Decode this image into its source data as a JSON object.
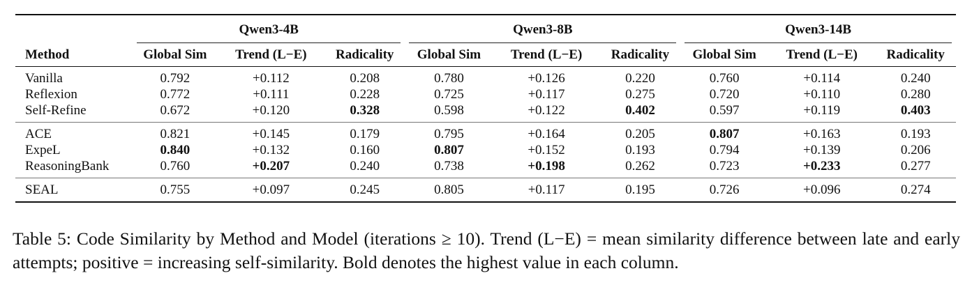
{
  "table": {
    "method_header": "Method",
    "models": [
      "Qwen3-4B",
      "Qwen3-8B",
      "Qwen3-14B"
    ],
    "metrics": [
      "Global Sim",
      "Trend (L−E)",
      "Radicality"
    ],
    "groups": [
      [
        {
          "method": "Vanilla",
          "values": [
            "0.792",
            "+0.112",
            "0.208",
            "0.780",
            "+0.126",
            "0.220",
            "0.760",
            "+0.114",
            "0.240"
          ],
          "bold": []
        },
        {
          "method": "Reflexion",
          "values": [
            "0.772",
            "+0.111",
            "0.228",
            "0.725",
            "+0.117",
            "0.275",
            "0.720",
            "+0.110",
            "0.280"
          ],
          "bold": []
        },
        {
          "method": "Self-Refine",
          "values": [
            "0.672",
            "+0.120",
            "0.328",
            "0.598",
            "+0.122",
            "0.402",
            "0.597",
            "+0.119",
            "0.403"
          ],
          "bold": [
            2,
            5,
            8
          ]
        }
      ],
      [
        {
          "method": "ACE",
          "values": [
            "0.821",
            "+0.145",
            "0.179",
            "0.795",
            "+0.164",
            "0.205",
            "0.807",
            "+0.163",
            "0.193"
          ],
          "bold": [
            6
          ]
        },
        {
          "method": "ExpeL",
          "values": [
            "0.840",
            "+0.132",
            "0.160",
            "0.807",
            "+0.152",
            "0.193",
            "0.794",
            "+0.139",
            "0.206"
          ],
          "bold": [
            0,
            3
          ]
        },
        {
          "method": "ReasoningBank",
          "values": [
            "0.760",
            "+0.207",
            "0.240",
            "0.738",
            "+0.198",
            "0.262",
            "0.723",
            "+0.233",
            "0.277"
          ],
          "bold": [
            1,
            4,
            7
          ]
        }
      ],
      [
        {
          "method": "SEAL",
          "values": [
            "0.755",
            "+0.097",
            "0.245",
            "0.805",
            "+0.117",
            "0.195",
            "0.726",
            "+0.096",
            "0.274"
          ],
          "bold": []
        }
      ]
    ]
  },
  "caption": "Table 5: Code Similarity by Method and Model (iterations ≥ 10). Trend (L−E) = mean similarity difference between late and early attempts; positive = increasing self-similarity. Bold denotes the highest value in each column."
}
